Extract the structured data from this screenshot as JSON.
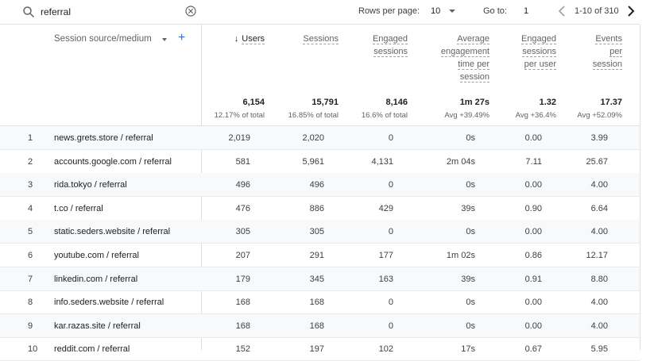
{
  "search": {
    "value": "referral",
    "placeholder": "Search"
  },
  "pagination": {
    "rows_label": "Rows per page:",
    "rows_value": "10",
    "goto_label": "Go to:",
    "goto_value": "1",
    "range": "1-10 of 310"
  },
  "dimension_header": "Session source/medium",
  "columns": [
    {
      "label": "Users",
      "sorted": true
    },
    {
      "label": "Sessions"
    },
    {
      "label": "Engaged sessions"
    },
    {
      "label": "Average engagement time per session"
    },
    {
      "label": "Engaged sessions per user"
    },
    {
      "label": "Events per session"
    }
  ],
  "totals": [
    {
      "value": "6,154",
      "sub": "12.17% of total"
    },
    {
      "value": "15,791",
      "sub": "16.85% of total"
    },
    {
      "value": "8,146",
      "sub": "16.6% of total"
    },
    {
      "value": "1m 27s",
      "sub": "Avg +39.49%"
    },
    {
      "value": "1.32",
      "sub": "Avg +36.4%"
    },
    {
      "value": "17.37",
      "sub": "Avg +52.09%"
    }
  ],
  "rows": [
    {
      "idx": "1",
      "dim": "news.grets.store / referral",
      "vals": [
        "2,019",
        "2,020",
        "0",
        "0s",
        "0.00",
        "3.99"
      ]
    },
    {
      "idx": "2",
      "dim": "accounts.google.com / referral",
      "vals": [
        "581",
        "5,961",
        "4,131",
        "2m 04s",
        "7.11",
        "25.67"
      ]
    },
    {
      "idx": "3",
      "dim": "rida.tokyo / referral",
      "vals": [
        "496",
        "496",
        "0",
        "0s",
        "0.00",
        "4.00"
      ]
    },
    {
      "idx": "4",
      "dim": "t.co / referral",
      "vals": [
        "476",
        "886",
        "429",
        "39s",
        "0.90",
        "6.64"
      ]
    },
    {
      "idx": "5",
      "dim": "static.seders.website / referral",
      "vals": [
        "305",
        "305",
        "0",
        "0s",
        "0.00",
        "4.00"
      ]
    },
    {
      "idx": "6",
      "dim": "youtube.com / referral",
      "vals": [
        "207",
        "291",
        "177",
        "1m 02s",
        "0.86",
        "12.17"
      ]
    },
    {
      "idx": "7",
      "dim": "linkedin.com / referral",
      "vals": [
        "179",
        "345",
        "163",
        "39s",
        "0.91",
        "8.80"
      ]
    },
    {
      "idx": "8",
      "dim": "info.seders.website / referral",
      "vals": [
        "168",
        "168",
        "0",
        "0s",
        "0.00",
        "4.00"
      ]
    },
    {
      "idx": "9",
      "dim": "kar.razas.site / referral",
      "vals": [
        "168",
        "168",
        "0",
        "0s",
        "0.00",
        "4.00"
      ]
    },
    {
      "idx": "10",
      "dim": "reddit.com / referral",
      "vals": [
        "152",
        "197",
        "102",
        "17s",
        "0.67",
        "5.95"
      ]
    }
  ],
  "colors": {
    "accent": "#1a73e8",
    "row_alt": "#f8f9fa",
    "divider": "#e0e0e0"
  },
  "icons": {
    "search": "search-icon",
    "clear": "clear-icon",
    "prev": "chevron-left-icon",
    "next": "chevron-right-icon",
    "add": "plus-icon"
  }
}
